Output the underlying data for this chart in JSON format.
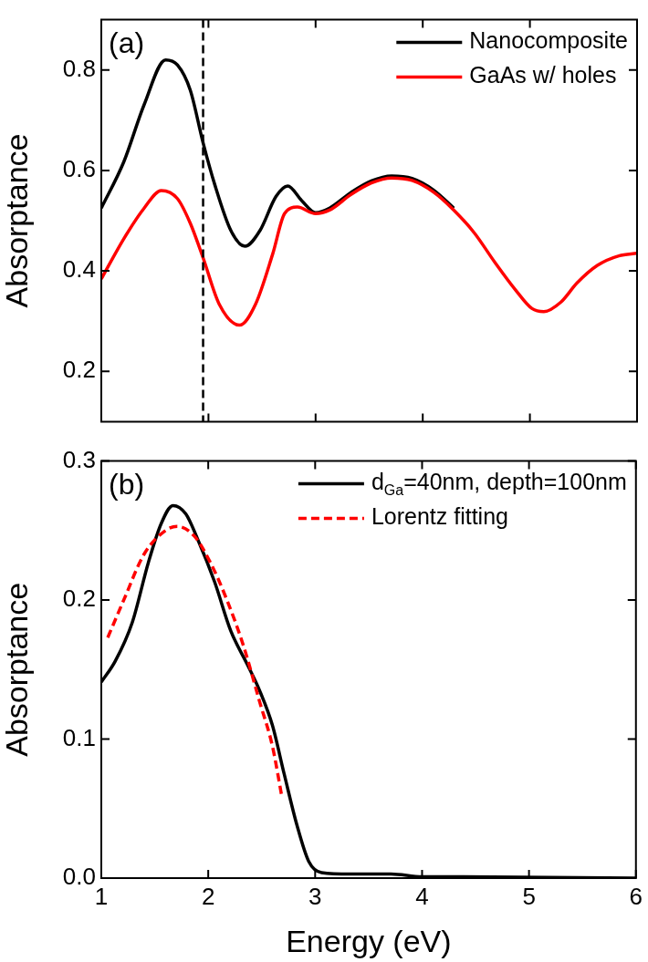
{
  "chart_data": [
    {
      "type": "line",
      "ylabel": "Absorptance",
      "annotations": [
        "(a)"
      ],
      "legend": "top right",
      "tick_labels": "y",
      "xlim": [
        1,
        6
      ],
      "xticks": [
        1,
        2,
        3,
        4,
        5,
        6
      ],
      "ylim": [
        0.1,
        0.9
      ],
      "yticks": [
        0.2,
        0.4,
        0.6,
        0.8
      ],
      "ref_lines": [
        {
          "axis": "x",
          "value": 1.95,
          "color": "#000000",
          "line_style": "dashed"
        }
      ],
      "series": [
        {
          "name": "Nanocomposite",
          "color": "#000000",
          "line_style": "solid",
          "x": [
            1.0,
            1.21,
            1.4,
            1.6,
            1.71,
            1.83,
            1.95,
            2.06,
            2.21,
            2.34,
            2.48,
            2.63,
            2.74,
            2.87,
            3.0,
            3.13,
            3.33,
            3.52,
            3.71,
            3.9,
            4.1,
            4.29
          ],
          "values": [
            0.525,
            0.617,
            0.731,
            0.82,
            0.81,
            0.76,
            0.655,
            0.571,
            0.48,
            0.449,
            0.48,
            0.548,
            0.569,
            0.54,
            0.516,
            0.525,
            0.556,
            0.579,
            0.589,
            0.584,
            0.561,
            0.525
          ]
        },
        {
          "name": "GaAs w/ holes",
          "color": "#ff0000",
          "line_style": "solid",
          "x": [
            1.0,
            1.21,
            1.4,
            1.56,
            1.71,
            1.83,
            1.95,
            2.1,
            2.29,
            2.44,
            2.6,
            2.71,
            2.83,
            3.0,
            3.13,
            3.33,
            3.52,
            3.71,
            3.9,
            4.1,
            4.29,
            4.48,
            4.67,
            4.87,
            5.02,
            5.13,
            5.29,
            5.44,
            5.63,
            5.83,
            6.0
          ],
          "values": [
            0.384,
            0.464,
            0.525,
            0.56,
            0.544,
            0.495,
            0.426,
            0.334,
            0.292,
            0.334,
            0.434,
            0.514,
            0.527,
            0.514,
            0.521,
            0.552,
            0.575,
            0.585,
            0.58,
            0.557,
            0.521,
            0.476,
            0.418,
            0.361,
            0.325,
            0.319,
            0.338,
            0.376,
            0.411,
            0.43,
            0.435
          ]
        }
      ]
    },
    {
      "type": "line",
      "xlabel": "Energy (eV)",
      "ylabel": "Absorptance",
      "annotations": [
        "(b)"
      ],
      "legend": "top right",
      "xlim": [
        1,
        6
      ],
      "xticks": [
        1,
        2,
        3,
        4,
        5,
        6
      ],
      "ylim": [
        0,
        0.3
      ],
      "yticks": [
        {
          "value": 0,
          "label": "0.0"
        },
        0.1,
        0.2,
        0.3
      ],
      "series": [
        {
          "name": "d$_{Ga}$=40nm, depth=100nm",
          "color": "#000000",
          "line_style": "solid",
          "x": [
            1.0,
            1.13,
            1.29,
            1.44,
            1.56,
            1.67,
            1.79,
            1.9,
            2.06,
            2.21,
            2.37,
            2.48,
            2.6,
            2.71,
            2.83,
            2.94,
            3.06,
            3.33,
            3.71,
            4.0,
            4.29,
            6.0
          ],
          "values": [
            0.141,
            0.156,
            0.184,
            0.227,
            0.255,
            0.268,
            0.262,
            0.244,
            0.213,
            0.178,
            0.153,
            0.135,
            0.11,
            0.075,
            0.038,
            0.012,
            0.004,
            0.003,
            0.003,
            0.001,
            0.001,
            0
          ]
        },
        {
          "name": "Lorentz fitting",
          "color": "#ff0000",
          "line_style": "dashed",
          "x": [
            1.06,
            1.21,
            1.4,
            1.6,
            1.71,
            1.87,
            2.02,
            2.17,
            2.33,
            2.48,
            2.6,
            2.69
          ],
          "values": [
            0.173,
            0.2,
            0.233,
            0.25,
            0.253,
            0.246,
            0.227,
            0.201,
            0.167,
            0.127,
            0.095,
            0.058
          ]
        }
      ]
    }
  ]
}
